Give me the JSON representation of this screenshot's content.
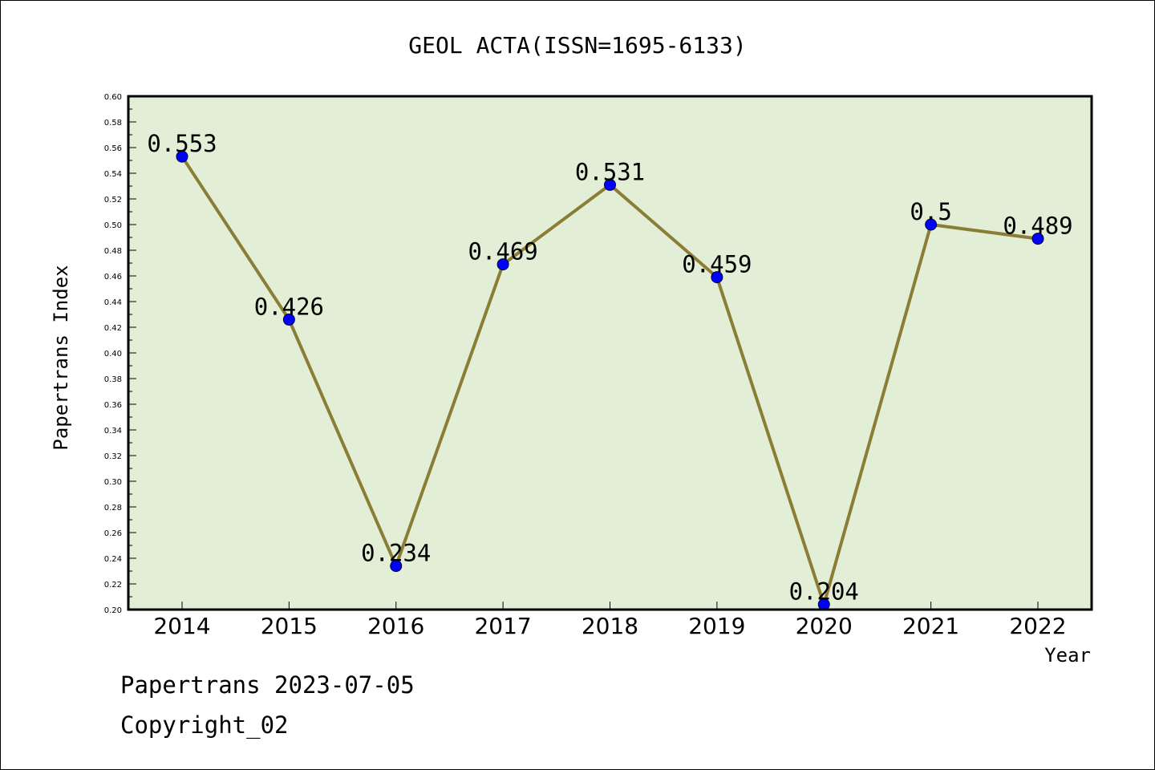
{
  "chart_data": {
    "type": "line",
    "title": "GEOL ACTA(ISSN=1695-6133)",
    "xlabel": "Year",
    "ylabel": "Papertrans Index",
    "categories": [
      "2014",
      "2015",
      "2016",
      "2017",
      "2018",
      "2019",
      "2020",
      "2021",
      "2022"
    ],
    "values": [
      0.553,
      0.426,
      0.234,
      0.469,
      0.531,
      0.459,
      0.204,
      0.5,
      0.489
    ],
    "value_labels": [
      "0.553",
      "0.426",
      "0.234",
      "0.469",
      "0.531",
      "0.459",
      "0.204",
      "0.5",
      "0.489"
    ],
    "ylim": [
      0.2,
      0.6
    ],
    "yticks": [
      "0.20",
      "0.22",
      "0.24",
      "0.26",
      "0.28",
      "0.30",
      "0.32",
      "0.34",
      "0.36",
      "0.38",
      "0.40",
      "0.42",
      "0.44",
      "0.46",
      "0.48",
      "0.50",
      "0.52",
      "0.54",
      "0.56",
      "0.58",
      "0.60"
    ],
    "grid": false,
    "colors": {
      "plot_background": "#e2efd6",
      "line": "#8b7d35",
      "marker": "#0000ff"
    }
  },
  "footer": {
    "date_line": "Papertrans 2023-07-05",
    "copyright": "Copyright_02"
  }
}
